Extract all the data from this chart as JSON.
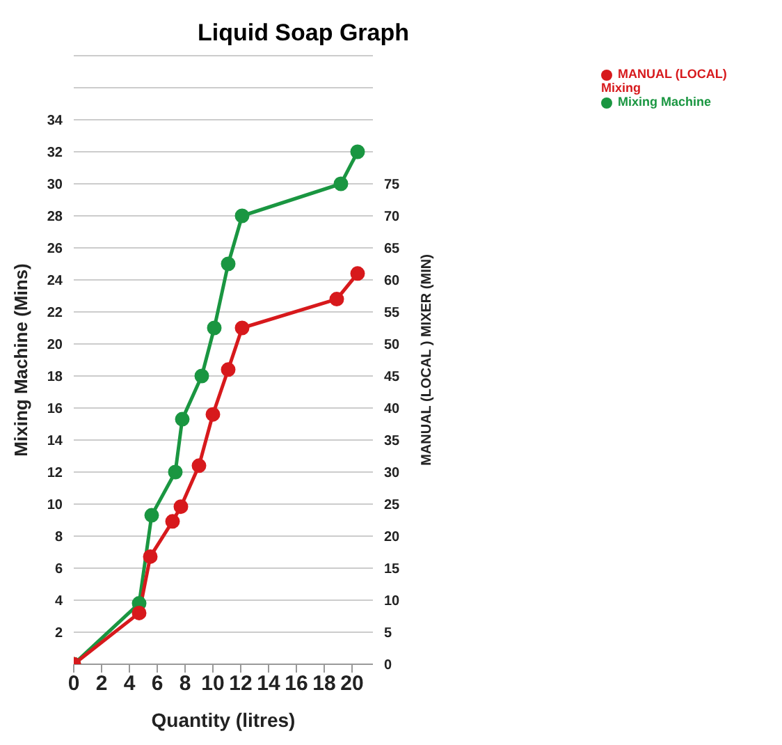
{
  "chart_data": {
    "type": "line",
    "title": "Liquid Soap Graph",
    "xlabel": "Quantity (litres)",
    "ylabel": "Mixing Machine (Mins)",
    "y2label": "MANUAL (LOCAL ) MIXER (MIN)",
    "xlim": [
      0,
      21.5
    ],
    "xticks": [
      0,
      2,
      4,
      6,
      8,
      10,
      12,
      14,
      16,
      18,
      20
    ],
    "ylim": [
      0,
      38
    ],
    "yticks": [
      {
        "value": 0,
        "label": null
      },
      2,
      4,
      6,
      8,
      10,
      12,
      14,
      16,
      18,
      20,
      22,
      24,
      26,
      28,
      30,
      32,
      34,
      {
        "value": 36,
        "label": null
      },
      {
        "value": 38,
        "label": null
      }
    ],
    "y2lim": [
      0,
      95
    ],
    "y2ticks": [
      0,
      5,
      10,
      15,
      20,
      25,
      30,
      35,
      40,
      45,
      50,
      55,
      60,
      65,
      70,
      75
    ],
    "grid": "y",
    "legend": "top right",
    "marker": "circle",
    "line_style": "solid",
    "series": [
      {
        "name": "Mixing Machine",
        "color": "#1a9641",
        "x": [
          0,
          4.7,
          5.6,
          7.3,
          7.8,
          9.2,
          10.1,
          11.1,
          12.1,
          19.2,
          20.4
        ],
        "values": [
          0,
          3.8,
          9.3,
          12,
          15.3,
          18,
          21,
          25,
          28,
          30,
          32
        ]
      },
      {
        "name": "MANUAL (LOCAL) Mixing",
        "color": "#d7191c",
        "axis": "y2",
        "x": [
          0,
          4.7,
          5.5,
          7.1,
          7.7,
          9,
          10,
          11.1,
          12.1,
          18.9,
          20.4
        ],
        "values": [
          0,
          8,
          16.8,
          22.3,
          24.6,
          31,
          39,
          46,
          52.5,
          57,
          61
        ]
      }
    ]
  }
}
